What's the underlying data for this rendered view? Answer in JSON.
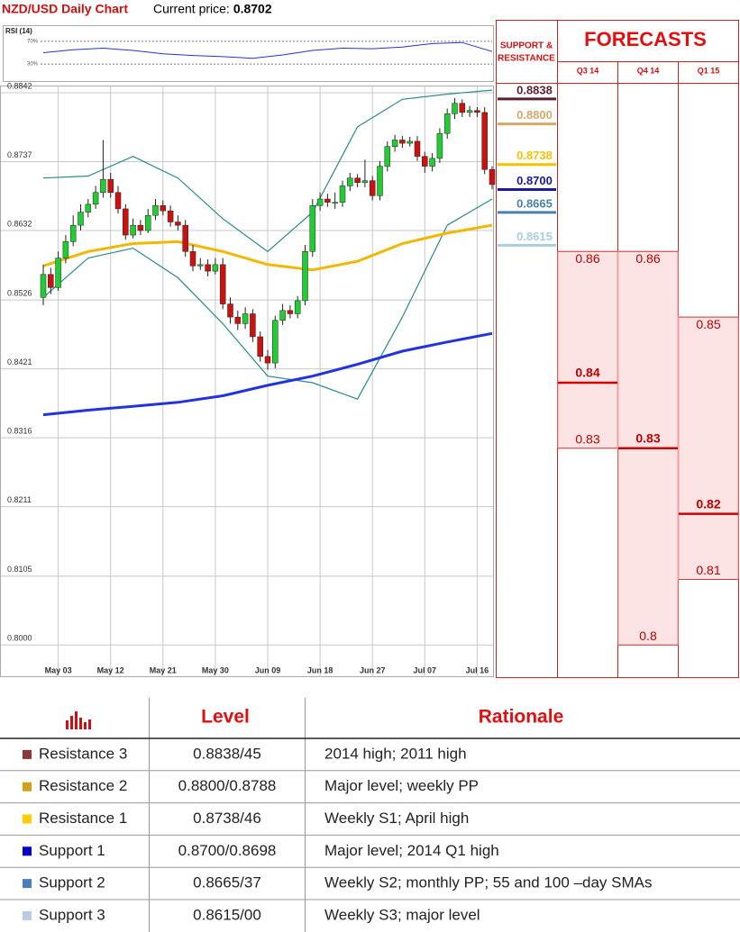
{
  "header": {
    "title": "NZD/USD Daily Chart",
    "price_label": "Current price:",
    "price": 0.8702
  },
  "chart_data": [
    {
      "type": "candlestick",
      "categories": [
        null,
        null,
        "May 03",
        null,
        null,
        null,
        null,
        null,
        null,
        "May 12",
        null,
        null,
        null,
        null,
        null,
        null,
        "May 21",
        null,
        null,
        null,
        null,
        null,
        null,
        "May 30",
        null,
        null,
        null,
        null,
        null,
        null,
        "Jun 09",
        null,
        null,
        null,
        null,
        null,
        null,
        "Jun 18",
        null,
        null,
        null,
        null,
        null,
        null,
        "Jun 27",
        null,
        null,
        null,
        null,
        null,
        null,
        "Jul 07",
        null,
        null,
        null,
        null,
        null,
        null,
        "Jul 16",
        null,
        null
      ],
      "open": [
        0.853,
        0.8565,
        0.8545,
        0.859,
        0.8615,
        0.864,
        0.866,
        0.8672,
        0.869,
        0.871,
        0.869,
        0.8665,
        0.8625,
        0.864,
        0.8632,
        0.8655,
        0.867,
        0.8662,
        0.8645,
        0.864,
        0.86,
        0.8578,
        0.858,
        0.857,
        0.858,
        0.852,
        0.85,
        0.849,
        0.8505,
        0.847,
        0.844,
        0.843,
        0.8495,
        0.851,
        0.8505,
        0.8525,
        0.86,
        0.867,
        0.868,
        0.8675,
        0.8675,
        0.87,
        0.8712,
        0.8705,
        0.8708,
        0.8685,
        0.873,
        0.876,
        0.877,
        0.8765,
        0.8768,
        0.8745,
        0.873,
        0.8742,
        0.878,
        0.881,
        0.8826,
        0.8812,
        0.8815,
        0.8812,
        0.8725
      ],
      "high": [
        0.858,
        0.8575,
        0.86,
        0.8625,
        0.8655,
        0.8672,
        0.868,
        0.87,
        0.877,
        0.872,
        0.87,
        0.8672,
        0.865,
        0.8648,
        0.8665,
        0.868,
        0.8678,
        0.867,
        0.8655,
        0.8648,
        0.861,
        0.859,
        0.8588,
        0.859,
        0.859,
        0.853,
        0.851,
        0.8515,
        0.8512,
        0.8478,
        0.845,
        0.8502,
        0.852,
        0.8518,
        0.8532,
        0.861,
        0.868,
        0.869,
        0.8688,
        0.869,
        0.8708,
        0.872,
        0.8718,
        0.874,
        0.8715,
        0.8738,
        0.8768,
        0.8778,
        0.8776,
        0.8775,
        0.8776,
        0.8752,
        0.875,
        0.8788,
        0.8818,
        0.8834,
        0.8832,
        0.8822,
        0.882,
        0.882,
        0.873
      ],
      "low": [
        0.8518,
        0.8535,
        0.854,
        0.8582,
        0.8608,
        0.8632,
        0.8652,
        0.8665,
        0.8682,
        0.8682,
        0.8658,
        0.8618,
        0.862,
        0.8625,
        0.8628,
        0.8648,
        0.8655,
        0.8638,
        0.8632,
        0.8592,
        0.857,
        0.8572,
        0.8562,
        0.8565,
        0.8512,
        0.849,
        0.848,
        0.8482,
        0.8462,
        0.8432,
        0.842,
        0.8422,
        0.8488,
        0.8498,
        0.8498,
        0.8518,
        0.8592,
        0.8662,
        0.8668,
        0.8665,
        0.8668,
        0.8692,
        0.8698,
        0.8698,
        0.8678,
        0.8678,
        0.8722,
        0.8752,
        0.8758,
        0.876,
        0.8738,
        0.872,
        0.8722,
        0.8735,
        0.8772,
        0.8802,
        0.8805,
        0.8805,
        0.8805,
        0.8718,
        0.8695
      ],
      "close": [
        0.8565,
        0.8545,
        0.859,
        0.8615,
        0.864,
        0.866,
        0.8672,
        0.869,
        0.871,
        0.869,
        0.8665,
        0.8625,
        0.864,
        0.8632,
        0.8655,
        0.867,
        0.8662,
        0.8645,
        0.864,
        0.86,
        0.8578,
        0.858,
        0.857,
        0.858,
        0.852,
        0.85,
        0.849,
        0.8505,
        0.847,
        0.844,
        0.843,
        0.8495,
        0.851,
        0.8505,
        0.8525,
        0.86,
        0.867,
        0.868,
        0.8675,
        0.8675,
        0.87,
        0.8712,
        0.8705,
        0.8708,
        0.8685,
        0.873,
        0.876,
        0.877,
        0.8765,
        0.8768,
        0.8745,
        0.873,
        0.8742,
        0.878,
        0.881,
        0.8826,
        0.8812,
        0.8815,
        0.8812,
        0.8725,
        0.8702
      ],
      "up_color": "#22cc33",
      "down_color": "#cc1111",
      "overlays": [
        {
          "color": "#2a8a8a",
          "x": [
            0,
            6,
            12,
            18,
            24,
            30,
            36,
            42,
            48,
            54,
            60
          ],
          "values": [
            0.8712,
            0.8715,
            0.8745,
            0.8712,
            0.865,
            0.86,
            0.866,
            0.879,
            0.8832,
            0.884,
            0.8846
          ]
        },
        {
          "color": "#2a8a8a",
          "x": [
            0,
            6,
            12,
            18,
            24,
            30,
            36,
            42,
            48,
            54,
            60
          ],
          "values": [
            0.853,
            0.859,
            0.8605,
            0.856,
            0.849,
            0.841,
            0.84,
            0.8375,
            0.85,
            0.864,
            0.868
          ]
        },
        {
          "color": "#f0b800",
          "x": [
            0,
            6,
            12,
            18,
            24,
            30,
            36,
            42,
            48,
            54,
            60
          ],
          "values": [
            0.8578,
            0.86,
            0.8612,
            0.8615,
            0.86,
            0.858,
            0.8572,
            0.8585,
            0.8612,
            0.8628,
            0.864
          ]
        },
        {
          "color": "#2233dd",
          "x": [
            0,
            6,
            12,
            18,
            24,
            30,
            36,
            42,
            48,
            54,
            60
          ],
          "values": [
            0.8351,
            0.8358,
            0.8364,
            0.837,
            0.838,
            0.8396,
            0.841,
            0.8428,
            0.8448,
            0.8462,
            0.8475
          ]
        }
      ],
      "ylim": [
        0.7951,
        0.8853
      ],
      "yticks": [
        0.8842,
        0.8737,
        0.8632,
        0.8526,
        0.8421,
        0.8316,
        0.8211,
        0.8105,
        {
          "value": 0.8,
          "label": "0.8000"
        }
      ],
      "grid": true
    },
    {
      "type": "line",
      "title": "RSI (14)",
      "color": "#2233cc",
      "x": [
        0,
        4,
        8,
        12,
        16,
        20,
        24,
        28,
        32,
        36,
        40,
        44,
        48,
        52,
        56,
        60
      ],
      "values": [
        50,
        55,
        58,
        54,
        48,
        45,
        43,
        40,
        46,
        54,
        58,
        57,
        60,
        66,
        68,
        52
      ],
      "ylim": [
        0,
        100
      ],
      "yticks": [
        {
          "value": 70,
          "label": "70%"
        },
        {
          "value": 30,
          "label": "30%"
        }
      ]
    }
  ],
  "support_resistance": {
    "title": "SUPPORT &",
    "title2": "RESISTANCE",
    "levels": [
      {
        "value": 0.8838,
        "color": "#5a1e32"
      },
      {
        "value": {
          "value": 0.88,
          "label": "0.8800"
        },
        "color": "#d4a96a"
      },
      {
        "value": 0.8738,
        "color": "#f5c200"
      },
      {
        "value": {
          "value": 0.87,
          "label": "0.8700"
        },
        "color": "#1a1a9a"
      },
      {
        "value": 0.8665,
        "color": "#4a80b0"
      },
      {
        "value": 0.8615,
        "color": "#a8cfe0"
      }
    ]
  },
  "forecasts": {
    "title": "FORECASTS",
    "quarters": [
      {
        "name": "Q3 14",
        "high": 0.86,
        "median": 0.84,
        "low": 0.83
      },
      {
        "name": "Q4 14",
        "high": 0.86,
        "median": 0.83,
        "low": 0.8
      },
      {
        "name": "Q1 15",
        "high": 0.85,
        "median": 0.82,
        "low": 0.81
      }
    ]
  },
  "table": {
    "headers": [
      "Level",
      "Rationale"
    ],
    "rows": [
      {
        "name": "Resistance 3",
        "color": "#8b3a3a",
        "level": "0.8838/45",
        "rationale": "2014 high; 2011 high"
      },
      {
        "name": "Resistance 2",
        "color": "#d4a017",
        "level": "0.8800/0.8788",
        "rationale": "Major level; weekly PP"
      },
      {
        "name": "Resistance 1",
        "color": "#ffcc00",
        "level": "0.8738/46",
        "rationale": "Weekly S1; April high"
      },
      {
        "name": "Support 1",
        "color": "#0000cc",
        "level": "0.8700/0.8698",
        "rationale": "Major level; 2014 Q1 high"
      },
      {
        "name": "Support 2",
        "color": "#4a7fbf",
        "level": "0.8665/37",
        "rationale": "Weekly S2; monthly PP; 55 and 100 –day SMAs"
      },
      {
        "name": "Support 3",
        "color": "#b8cce4",
        "level": "0.8615/00",
        "rationale": "Weekly S3; major level"
      }
    ]
  }
}
